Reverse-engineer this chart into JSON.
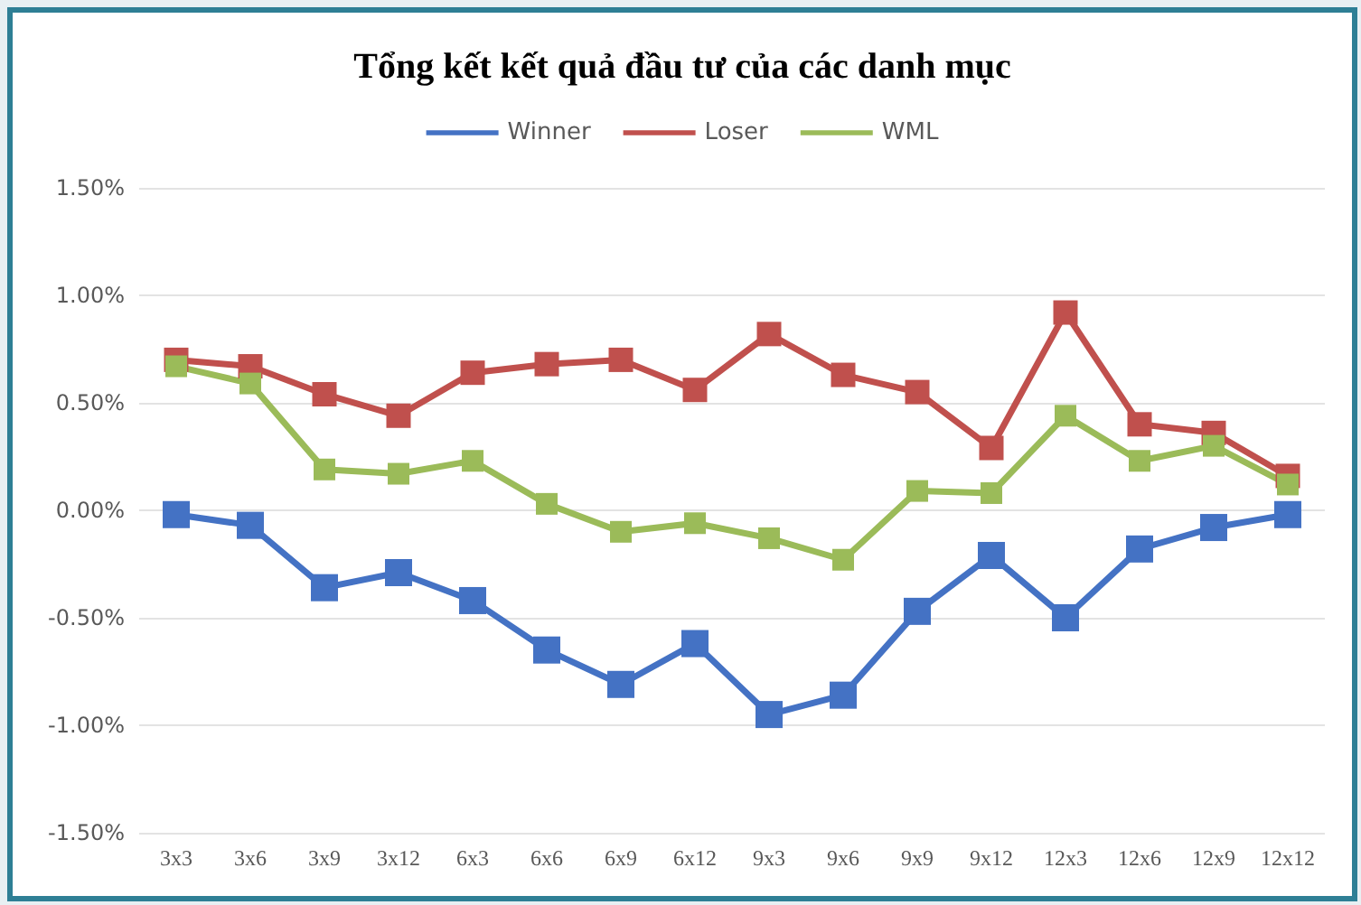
{
  "chart_data": {
    "type": "line",
    "title": "Tổng kết kết quả đầu tư của các danh mục",
    "categories": [
      "3x3",
      "3x6",
      "3x9",
      "3x12",
      "6x3",
      "6x6",
      "6x9",
      "6x12",
      "9x3",
      "9x6",
      "9x9",
      "9x12",
      "12x3",
      "12x6",
      "12x9",
      "12x12"
    ],
    "series": [
      {
        "name": "Winner",
        "color": "#4472c4",
        "values": [
          -0.02,
          -0.07,
          -0.36,
          -0.29,
          -0.42,
          -0.65,
          -0.81,
          -0.62,
          -0.95,
          -0.86,
          -0.47,
          -0.21,
          -0.5,
          -0.18,
          -0.08,
          -0.02
        ]
      },
      {
        "name": "Loser",
        "color": "#c0504d",
        "values": [
          0.7,
          0.67,
          0.54,
          0.44,
          0.64,
          0.68,
          0.7,
          0.56,
          0.82,
          0.63,
          0.55,
          0.29,
          0.92,
          0.4,
          0.36,
          0.16
        ]
      },
      {
        "name": "WML",
        "color": "#9bbb59",
        "values": [
          0.67,
          0.59,
          0.19,
          0.17,
          0.23,
          0.03,
          -0.1,
          -0.06,
          -0.13,
          -0.23,
          0.09,
          0.08,
          0.44,
          0.23,
          0.3,
          0.12
        ]
      }
    ],
    "ylim": [
      -1.5,
      1.5
    ],
    "yticks": [
      {
        "value": -1.5,
        "label": "-1.50%"
      },
      {
        "value": -1,
        "label": "-1.00%"
      },
      {
        "value": -0.5,
        "label": "-0.50%"
      },
      {
        "value": 0,
        "label": "0.00%"
      },
      {
        "value": 0.5,
        "label": "0.50%"
      },
      {
        "value": 1,
        "label": "1.00%"
      },
      {
        "value": 1.5,
        "label": "1.50%"
      }
    ],
    "grid": "y",
    "legend": "top",
    "marker": "square",
    "line_style": "solid"
  }
}
